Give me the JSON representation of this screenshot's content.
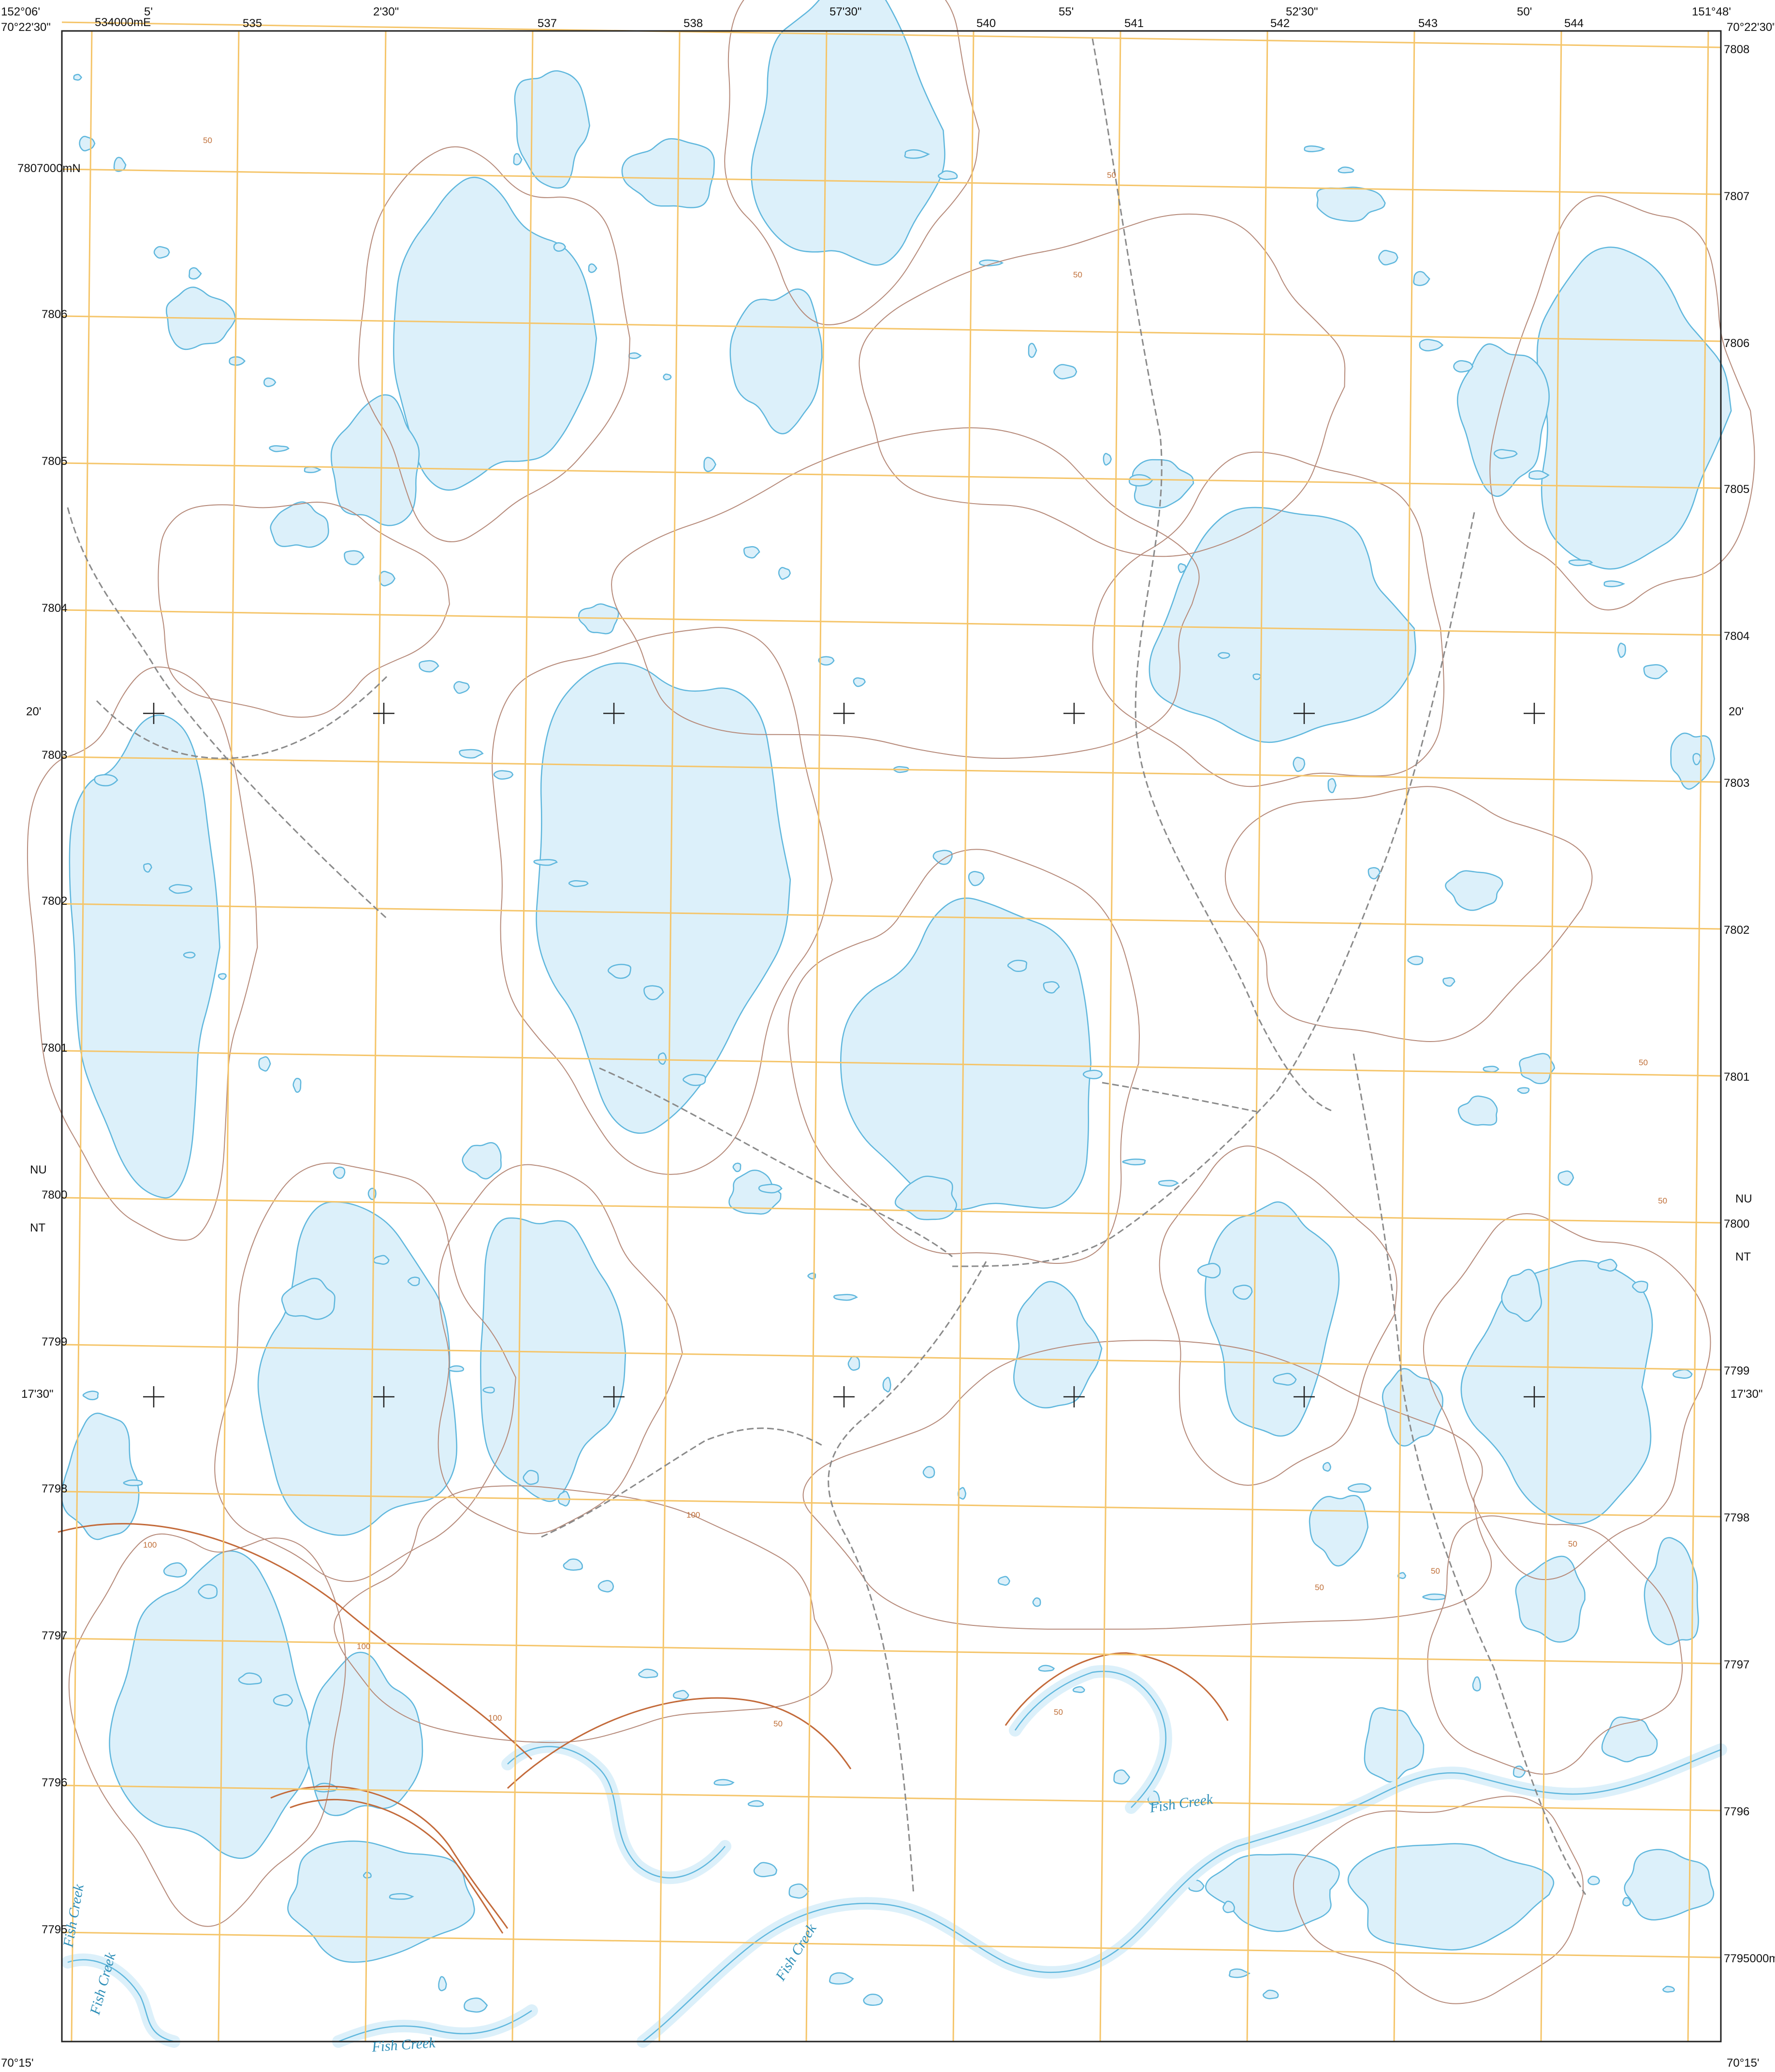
{
  "map": {
    "corners": {
      "nw_lon": "152°06'",
      "nw_lat": "70°22'30\"",
      "ne_lon": "151°48'",
      "ne_lat": "70°22'30\"",
      "sw_lat": "70°15'",
      "se_lat": "70°15'"
    },
    "top_labels": [
      "534000mE",
      "5'",
      "535",
      "2'30\"",
      "537",
      "538",
      "57'30\"",
      "540",
      "55'",
      "541",
      "542",
      "52'30\"",
      "543",
      "50'",
      "544"
    ],
    "left_utm": [
      "7807000mN",
      "7806",
      "7805",
      "7804",
      "7803",
      "7802",
      "7801",
      "7800",
      "7799",
      "7798",
      "7797",
      "7796",
      "7795"
    ],
    "right_utm": [
      "7808",
      "7807",
      "7806",
      "7805",
      "7804",
      "7803",
      "7802",
      "7801",
      "7800",
      "7799",
      "7798",
      "7797",
      "7796",
      "7795000mN"
    ],
    "lat_marks": [
      "20'",
      "17'30\""
    ],
    "boundary_labels": [
      "NU",
      "NT"
    ],
    "water_names": [
      "Fish Creek",
      "Fish Creek",
      "Fish Creek",
      "Fish Creek",
      "Fish Creek"
    ],
    "contour_values": [
      "50",
      "50",
      "50",
      "50",
      "100",
      "100",
      "100",
      "100",
      "50",
      "50",
      "50",
      "50",
      "50",
      "50"
    ],
    "colors": {
      "water_fill": "#dcf0fa",
      "water_edge": "#5fb7dd",
      "contour": "#b68a7a",
      "index_contour": "#c36a3a",
      "utm_grid": "#f5c56a",
      "track": "#8a8a8a",
      "neatline": "#222222"
    }
  }
}
